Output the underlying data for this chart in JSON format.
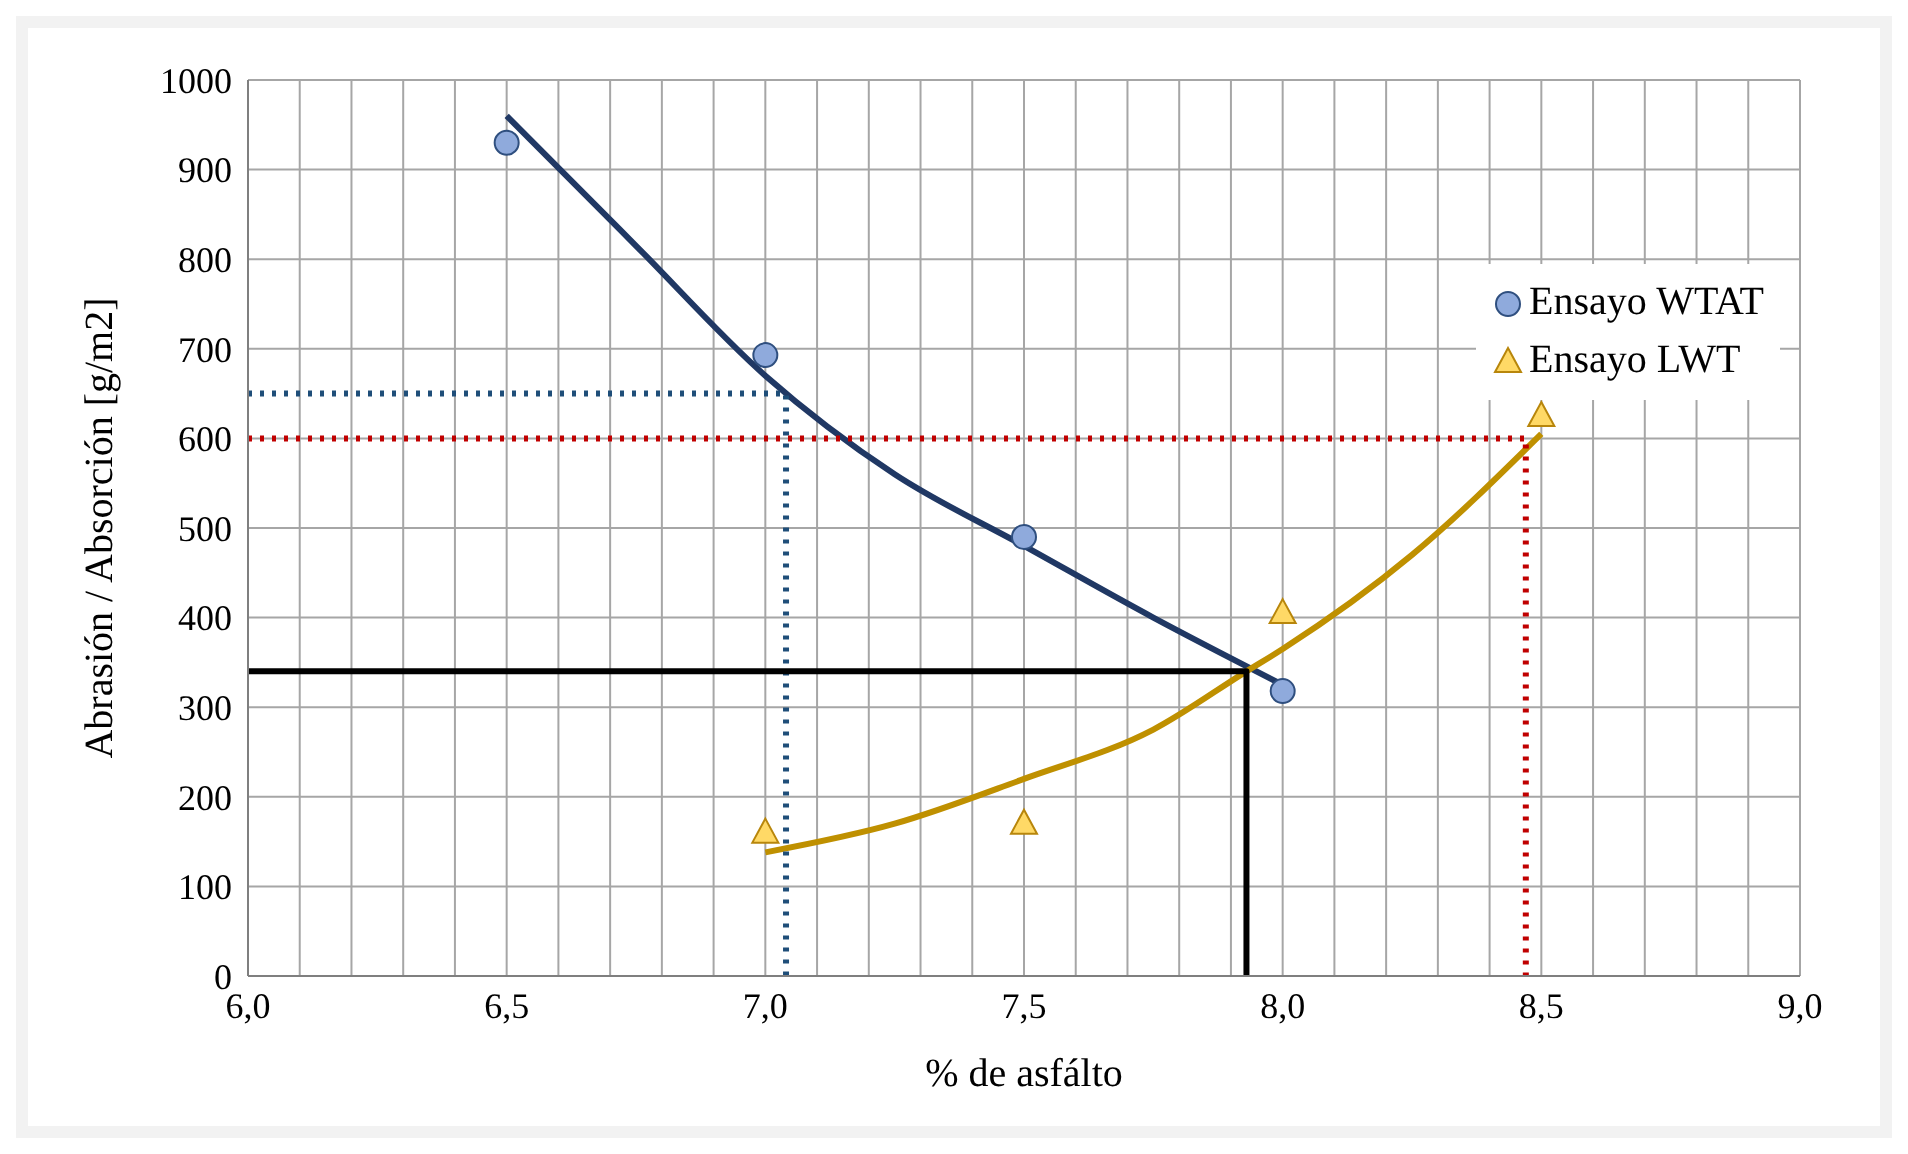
{
  "chart_data": {
    "type": "scatter",
    "xlabel": "% de asfálto",
    "ylabel": "Abrasión / Absorción [g/m2]",
    "xlim": [
      6.0,
      9.0
    ],
    "xticks": [
      {
        "value": 6.0,
        "label": "6,0"
      },
      {
        "value": 6.1,
        "label": null
      },
      {
        "value": 6.2,
        "label": null
      },
      {
        "value": 6.3,
        "label": null
      },
      {
        "value": 6.4,
        "label": null
      },
      {
        "value": 6.5,
        "label": "6,5"
      },
      {
        "value": 6.6,
        "label": null
      },
      {
        "value": 6.7,
        "label": null
      },
      {
        "value": 6.8,
        "label": null
      },
      {
        "value": 6.9,
        "label": null
      },
      {
        "value": 7.0,
        "label": "7,0"
      },
      {
        "value": 7.1,
        "label": null
      },
      {
        "value": 7.2,
        "label": null
      },
      {
        "value": 7.3,
        "label": null
      },
      {
        "value": 7.4,
        "label": null
      },
      {
        "value": 7.5,
        "label": "7,5"
      },
      {
        "value": 7.6,
        "label": null
      },
      {
        "value": 7.7,
        "label": null
      },
      {
        "value": 7.8,
        "label": null
      },
      {
        "value": 7.9,
        "label": null
      },
      {
        "value": 8.0,
        "label": "8,0"
      },
      {
        "value": 8.1,
        "label": null
      },
      {
        "value": 8.2,
        "label": null
      },
      {
        "value": 8.3,
        "label": null
      },
      {
        "value": 8.4,
        "label": null
      },
      {
        "value": 8.5,
        "label": "8,5"
      },
      {
        "value": 8.6,
        "label": null
      },
      {
        "value": 8.7,
        "label": null
      },
      {
        "value": 8.8,
        "label": null
      },
      {
        "value": 8.9,
        "label": null
      },
      {
        "value": 9.0,
        "label": "9,0"
      }
    ],
    "ylim": [
      0,
      1000
    ],
    "yticks": [
      0,
      100,
      200,
      300,
      400,
      500,
      600,
      700,
      800,
      900,
      1000
    ],
    "grid": true,
    "legend": "top right",
    "series": [
      {
        "name": "Ensayo WTAT",
        "marker": "circle",
        "color": "#8faadc",
        "x": [
          6.5,
          7.0,
          7.5,
          8.0
        ],
        "values": [
          930,
          693,
          490,
          318
        ]
      },
      {
        "name": "Ensayo LWT",
        "marker": "triangle",
        "color": "#ffd966",
        "x": [
          7.0,
          7.5,
          8.0,
          8.5
        ],
        "values": [
          160,
          170,
          405,
          625
        ]
      },
      {
        "type": "line",
        "color": "#203864",
        "line_style": "solid",
        "x": [
          6.5,
          6.75,
          7.0,
          7.25,
          7.5,
          7.75,
          8.0
        ],
        "values": [
          960,
          815,
          670,
          560,
          480,
          400,
          325
        ]
      },
      {
        "type": "line",
        "color": "#bf9000",
        "line_style": "solid",
        "x": [
          7.0,
          7.25,
          7.5,
          7.75,
          7.93,
          8.0,
          8.25,
          8.5
        ],
        "values": [
          138,
          170,
          220,
          275,
          340,
          365,
          470,
          605
        ]
      },
      {
        "type": "line",
        "color": "#1f4e79",
        "line_style": "dotted",
        "x": [
          6.0,
          7.04,
          7.04
        ],
        "values": [
          650,
          650,
          0
        ]
      },
      {
        "type": "line",
        "color": "#c00000",
        "line_style": "dotted",
        "x": [
          6.0,
          8.47,
          8.47
        ],
        "values": [
          600,
          600,
          0
        ]
      },
      {
        "type": "line",
        "color": "#000000",
        "line_style": "solid",
        "x": [
          6.0,
          7.93,
          7.93
        ],
        "values": [
          340,
          340,
          0
        ]
      }
    ]
  }
}
